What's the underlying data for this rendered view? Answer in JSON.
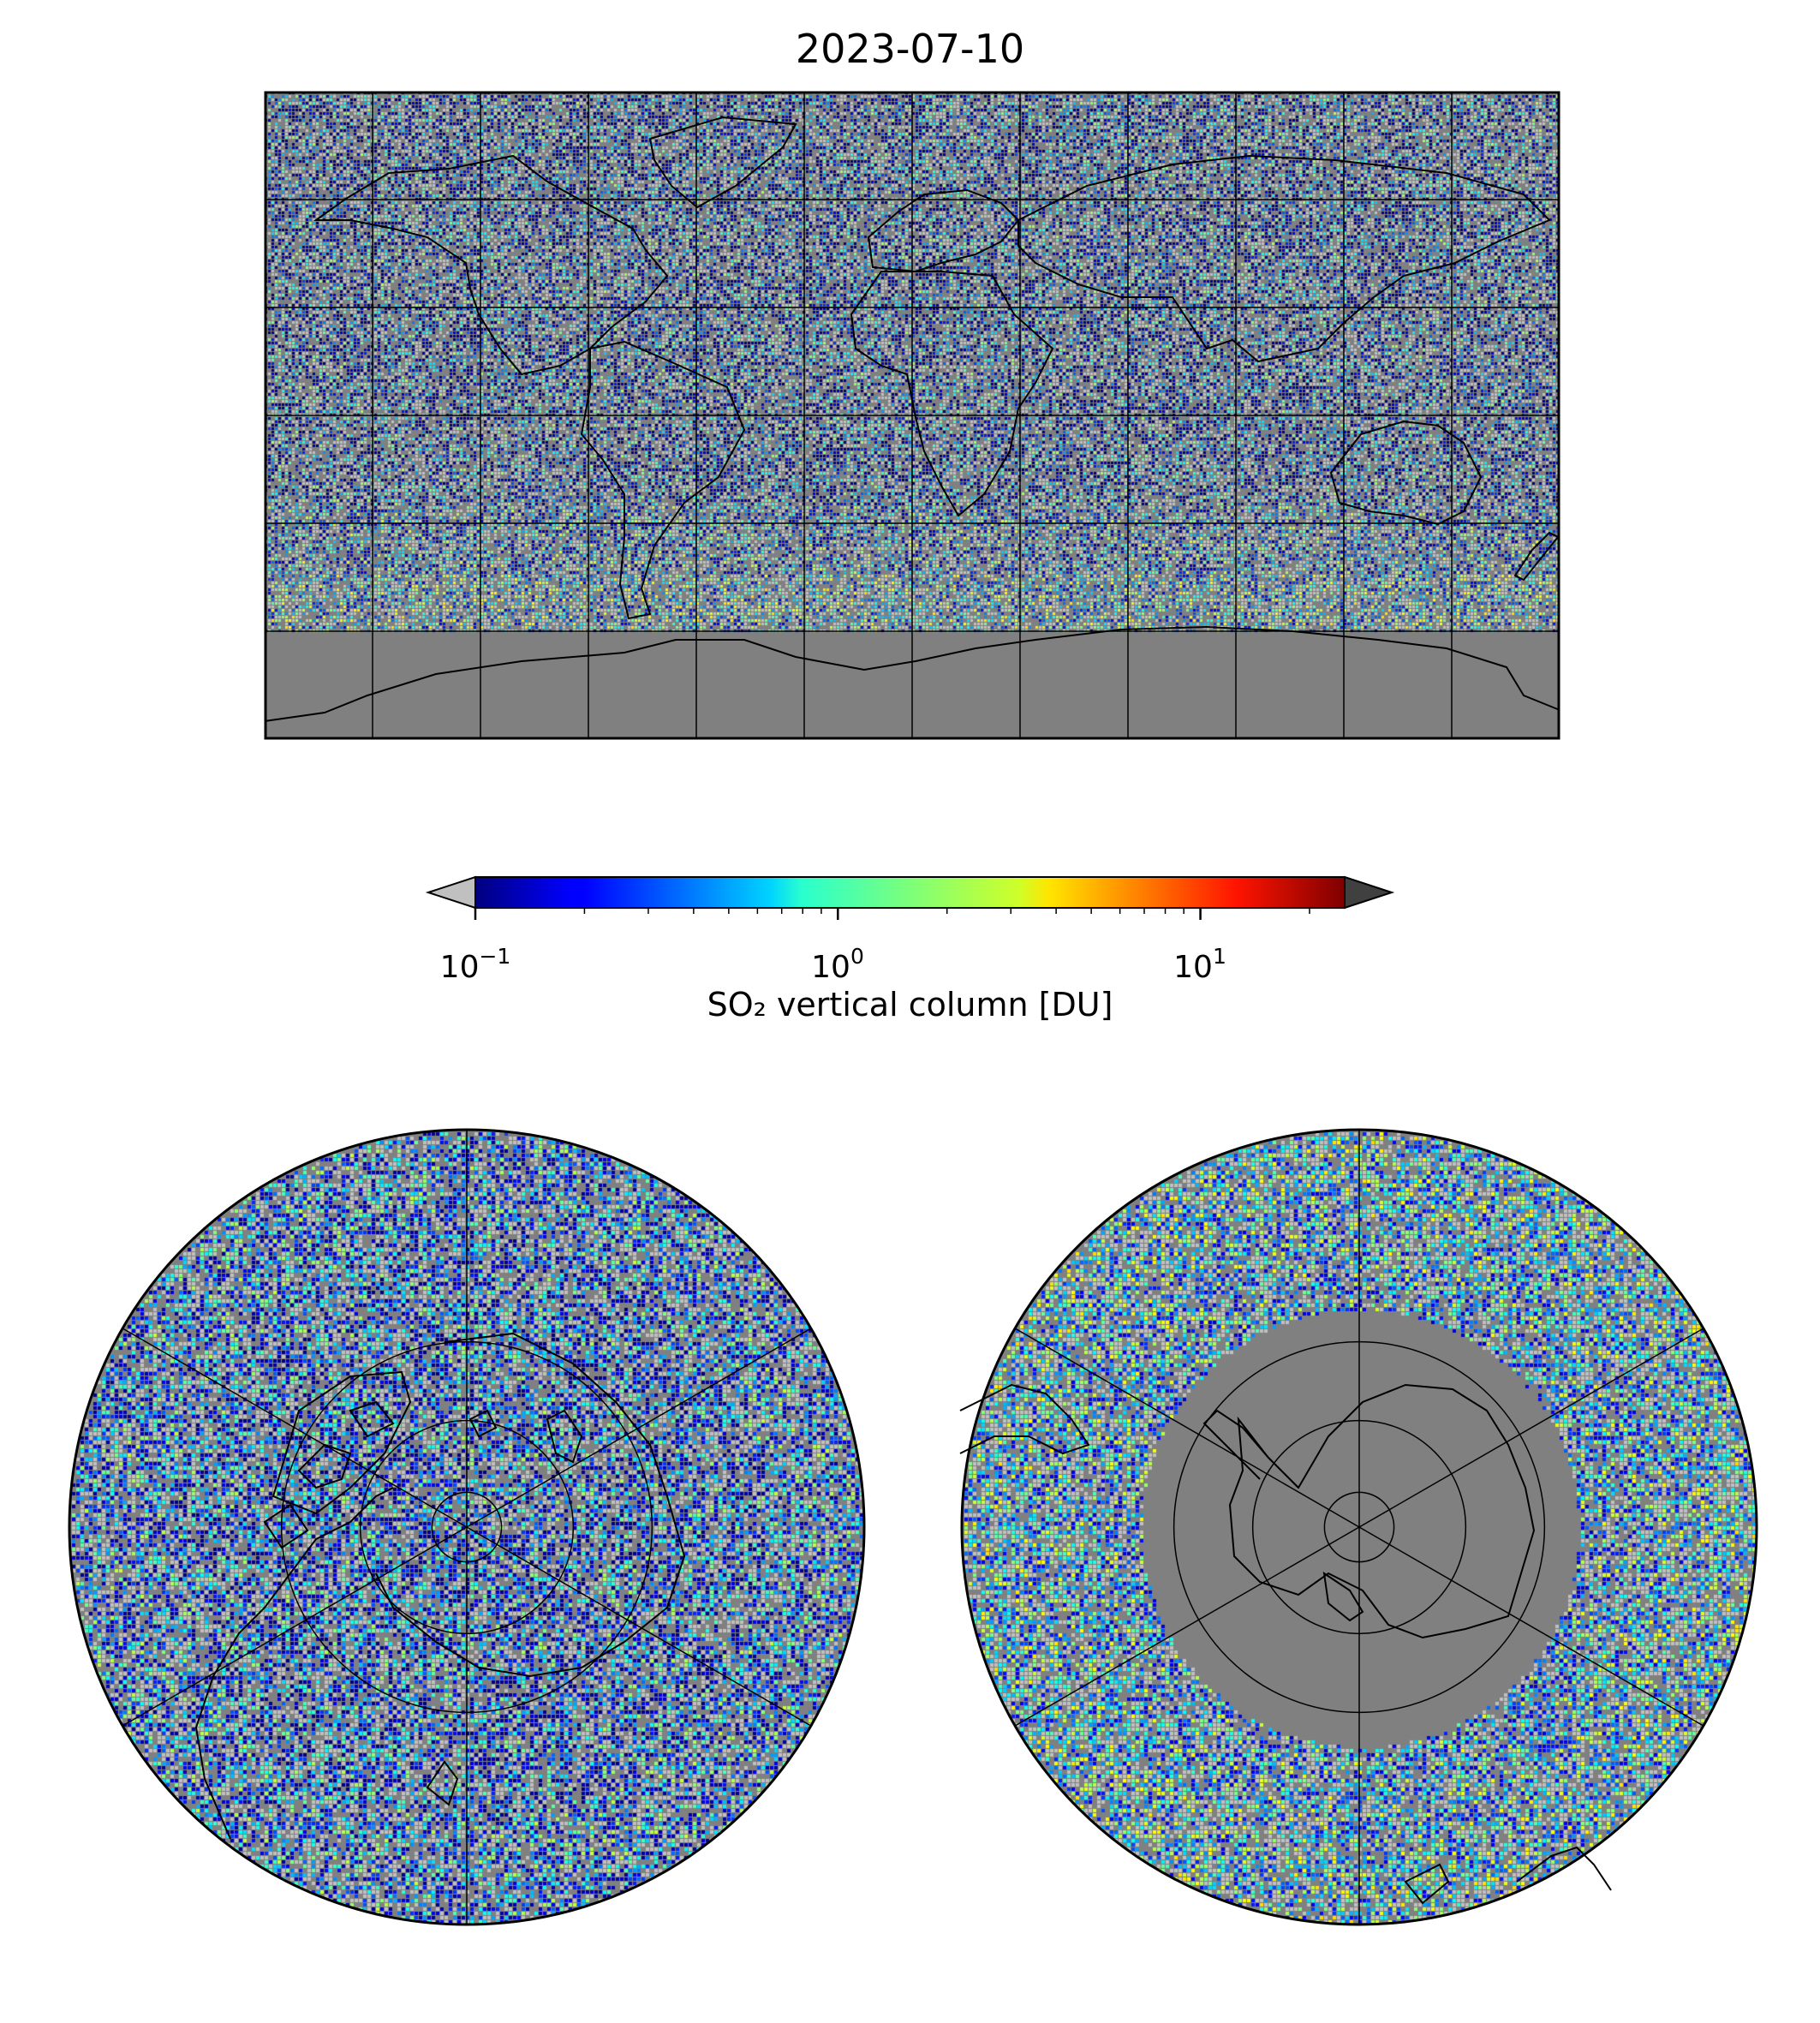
{
  "title": "2023-07-10",
  "colorbar": {
    "label": "SO₂ vertical column [DU]",
    "scale": "log",
    "range": [
      0.1,
      25
    ],
    "colormap": "jet",
    "extend": "both",
    "under_color": "#c0c0c0",
    "over_color": "#404040",
    "ticks": [
      {
        "base": "10",
        "exp": "−1",
        "value": 0.1
      },
      {
        "base": "10",
        "exp": "0",
        "value": 1
      },
      {
        "base": "10",
        "exp": "1",
        "value": 10
      }
    ]
  },
  "maps": {
    "world": {
      "projection": "plate-carree",
      "extent_lon": [
        -180,
        180
      ],
      "extent_lat": [
        -90,
        90
      ],
      "gridline_spacing_deg": 30
    },
    "north_polar": {
      "projection": "north-polar-stereographic",
      "boundary_lat": 0,
      "parallels": [
        20,
        40,
        60,
        80
      ]
    },
    "south_polar": {
      "projection": "south-polar-stereographic",
      "boundary_lat": 0,
      "parallels": [
        -20,
        -40,
        -60,
        -80
      ]
    }
  },
  "colors": {
    "no_data": "#808080",
    "below_range": "#c0c0c0",
    "coastline": "#000000"
  },
  "chart_data": {
    "type": "heatmap",
    "title": "2023-07-10",
    "variable": "SO₂ vertical column [DU]",
    "clim": [
      0.1,
      25
    ],
    "log_scale": true,
    "grid": true
  }
}
